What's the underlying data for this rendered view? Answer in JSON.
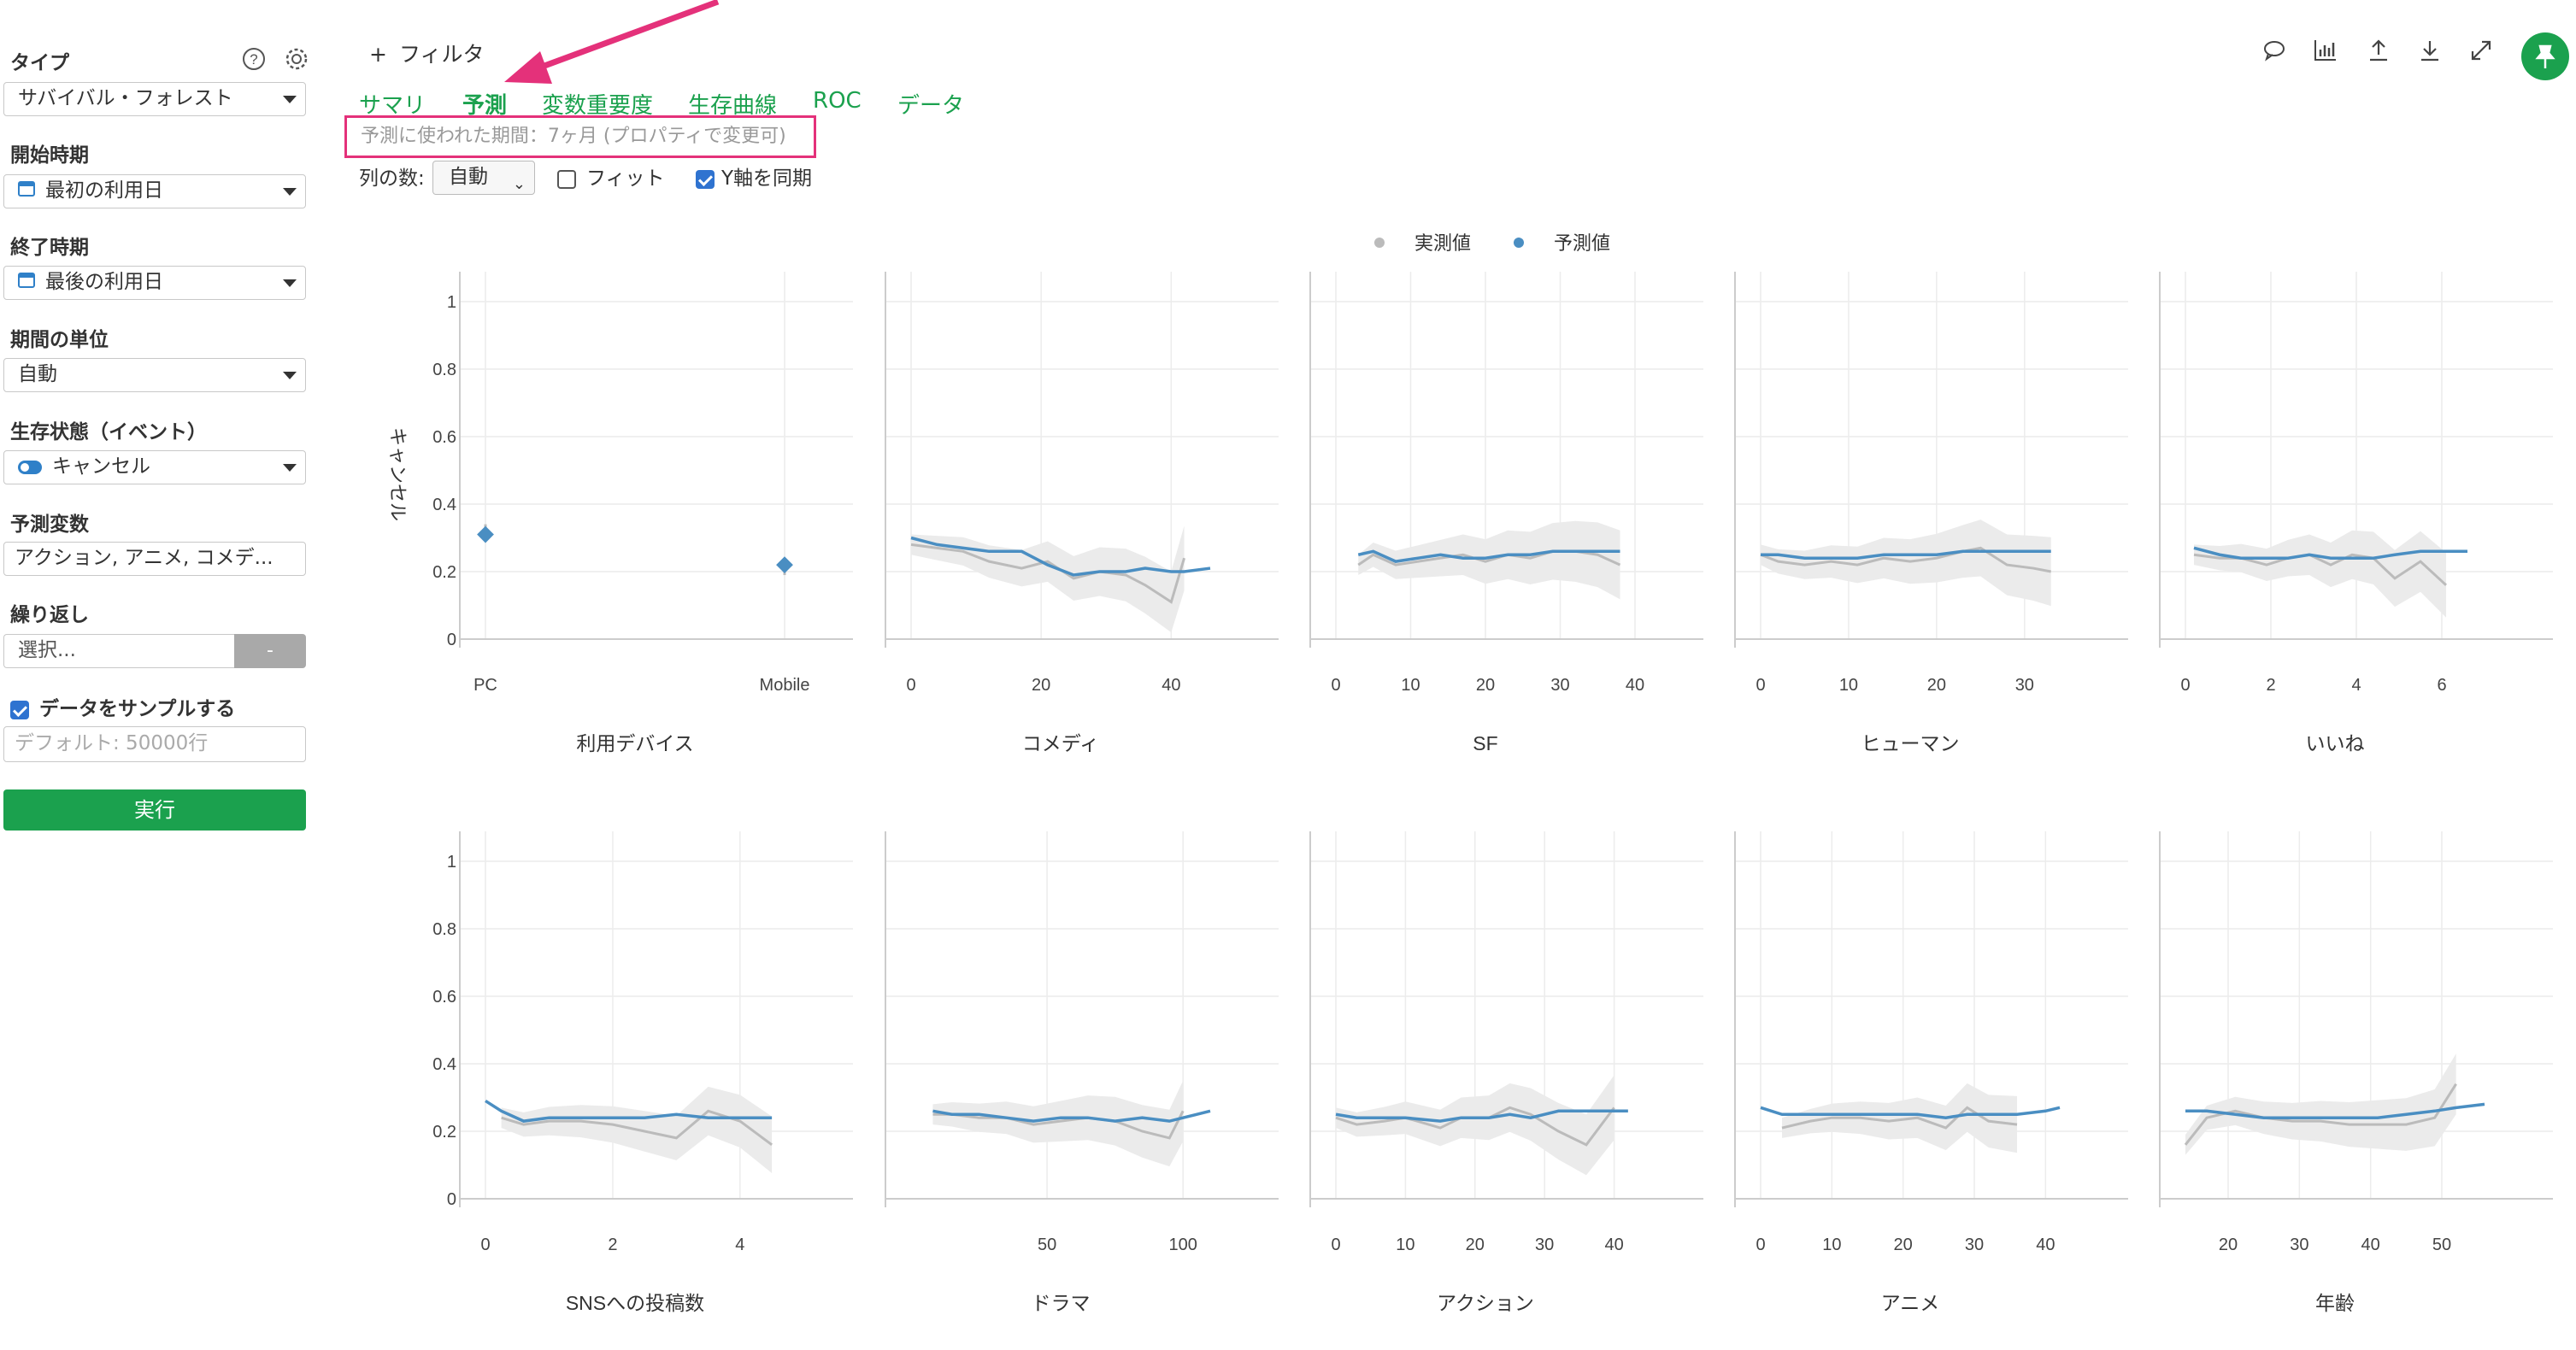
{
  "sidebar": {
    "type_label": "タイプ",
    "type_value": "サバイバル・フォレスト",
    "start_label": "開始時期",
    "start_value": "最初の利用日",
    "end_label": "終了時期",
    "end_value": "最後の利用日",
    "unit_label": "期間の単位",
    "unit_value": "自動",
    "event_label": "生存状態（イベント）",
    "event_value": "キャンセル",
    "predictors_label": "予測変数",
    "predictors_value": "アクション, アニメ, コメデ...",
    "repeat_label": "繰り返し",
    "repeat_placeholder": "選択...",
    "repeat_button": "-",
    "sample_label": "データをサンプルする",
    "sample_checked": true,
    "rows_placeholder": "デフォルト: 50000行",
    "run_button": "実行"
  },
  "header": {
    "filter_label": "フィルタ",
    "icons": [
      "comment-icon",
      "chart-icon",
      "upload-icon",
      "download-icon",
      "expand-icon",
      "pin-icon"
    ]
  },
  "tabs": [
    {
      "label": "サマリ",
      "active": false
    },
    {
      "label": "予測",
      "active": true
    },
    {
      "label": "変数重要度",
      "active": false
    },
    {
      "label": "生存曲線",
      "active": false
    },
    {
      "label": "ROC",
      "active": false
    },
    {
      "label": "データ",
      "active": false
    }
  ],
  "period_note": "予測に使われた期間：7ヶ月 (プロパティで変更可)",
  "options": {
    "columns_label": "列の数:",
    "columns_value": "自動",
    "fit_label": "フィット",
    "fit_checked": false,
    "sync_y_label": "Y軸を同期",
    "sync_y_checked": true
  },
  "colors": {
    "accent": "#1ba14e",
    "actual": "#bbbbbb",
    "predicted": "#4a8ec2",
    "highlight": "#e4317a"
  },
  "chart_data": {
    "type": "line",
    "legend": [
      "実測値",
      "予測値"
    ],
    "ylabel": "キャンセル",
    "yticks": [
      "1",
      "0.8",
      "0.6",
      "0.4",
      "0.2",
      "0"
    ],
    "ylim": [
      0,
      1
    ],
    "panels": [
      {
        "title": "利用デバイス",
        "kind": "categorical",
        "categories": [
          "PC",
          "Mobile"
        ],
        "actual": [
          0.32,
          0.21
        ],
        "predicted": [
          0.31,
          0.22
        ]
      },
      {
        "title": "コメディ",
        "xlim": [
          0,
          46
        ],
        "xticks": [
          "0",
          "20",
          "40"
        ],
        "x": [
          0,
          4,
          8,
          12,
          17,
          21,
          25,
          29,
          33,
          36,
          40,
          42,
          46
        ],
        "actual": [
          0.28,
          0.27,
          0.26,
          0.23,
          0.21,
          0.23,
          0.18,
          0.2,
          0.19,
          0.16,
          0.11,
          0.24,
          null
        ],
        "predicted": [
          0.3,
          0.28,
          0.27,
          0.26,
          0.26,
          0.22,
          0.19,
          0.2,
          0.2,
          0.21,
          0.2,
          0.2,
          0.21
        ]
      },
      {
        "title": "SF",
        "xlim": [
          0,
          40
        ],
        "xticks": [
          "0",
          "10",
          "20",
          "30",
          "40"
        ],
        "x": [
          3,
          5,
          8,
          11,
          14,
          17,
          20,
          23,
          26,
          29,
          32,
          35,
          38
        ],
        "actual": [
          0.22,
          0.25,
          0.22,
          0.23,
          0.24,
          0.25,
          0.23,
          0.25,
          0.24,
          0.26,
          0.26,
          0.25,
          0.22
        ],
        "predicted": [
          0.25,
          0.26,
          0.23,
          0.24,
          0.25,
          0.24,
          0.24,
          0.25,
          0.25,
          0.26,
          0.26,
          0.26,
          0.26
        ]
      },
      {
        "title": "ヒューマン",
        "xlim": [
          0,
          34
        ],
        "xticks": [
          "0",
          "10",
          "20",
          "30"
        ],
        "x": [
          0,
          2,
          5,
          8,
          11,
          14,
          17,
          20,
          23,
          25,
          28,
          31,
          33
        ],
        "actual": [
          0.25,
          0.23,
          0.22,
          0.23,
          0.22,
          0.24,
          0.23,
          0.24,
          0.26,
          0.27,
          0.22,
          0.21,
          0.2
        ],
        "predicted": [
          0.25,
          0.25,
          0.24,
          0.24,
          0.24,
          0.25,
          0.25,
          0.25,
          0.26,
          0.26,
          0.26,
          0.26,
          0.26
        ]
      },
      {
        "title": "いいね",
        "xlim": [
          0,
          7
        ],
        "xticks": [
          "0",
          "2",
          "4",
          "6"
        ],
        "x": [
          0.2,
          0.8,
          1.3,
          1.9,
          2.4,
          2.9,
          3.4,
          3.9,
          4.4,
          4.9,
          5.5,
          6.1,
          6.6
        ],
        "actual": [
          0.25,
          0.24,
          0.24,
          0.22,
          0.24,
          0.25,
          0.22,
          0.25,
          0.24,
          0.18,
          0.23,
          0.16,
          null
        ],
        "predicted": [
          0.27,
          0.25,
          0.24,
          0.24,
          0.24,
          0.25,
          0.24,
          0.24,
          0.24,
          0.25,
          0.26,
          0.26,
          0.26
        ]
      },
      {
        "title": "SNSへの投稿数",
        "xlim": [
          0,
          4.7
        ],
        "xticks": [
          "0",
          "2",
          "4"
        ],
        "x": [
          0,
          0.25,
          0.6,
          1.0,
          1.5,
          2.0,
          2.5,
          3.0,
          3.5,
          4.0,
          4.5
        ],
        "actual": [
          null,
          0.24,
          0.22,
          0.23,
          0.23,
          0.22,
          0.2,
          0.18,
          0.26,
          0.23,
          0.16
        ],
        "predicted": [
          0.29,
          0.26,
          0.23,
          0.24,
          0.24,
          0.24,
          0.24,
          0.25,
          0.24,
          0.24,
          0.24
        ]
      },
      {
        "title": "ドラマ",
        "xlim": [
          0,
          110
        ],
        "xticks": [
          "50",
          "100"
        ],
        "x": [
          8,
          15,
          25,
          35,
          45,
          55,
          65,
          75,
          85,
          95,
          100,
          110
        ],
        "actual": [
          0.25,
          0.25,
          0.24,
          0.24,
          0.22,
          0.23,
          0.24,
          0.23,
          0.2,
          0.18,
          0.26,
          null
        ],
        "predicted": [
          0.26,
          0.25,
          0.25,
          0.24,
          0.23,
          0.24,
          0.24,
          0.23,
          0.24,
          0.23,
          0.24,
          0.26
        ]
      },
      {
        "title": "アクション",
        "xlim": [
          0,
          43
        ],
        "xticks": [
          "0",
          "10",
          "20",
          "30",
          "40"
        ],
        "x": [
          0,
          3,
          7,
          10,
          15,
          18,
          22,
          25,
          28,
          32,
          36,
          40,
          42
        ],
        "actual": [
          0.24,
          0.22,
          0.23,
          0.24,
          0.21,
          0.24,
          0.24,
          0.27,
          0.25,
          0.2,
          0.16,
          0.27,
          null
        ],
        "predicted": [
          0.25,
          0.24,
          0.24,
          0.24,
          0.23,
          0.24,
          0.24,
          0.25,
          0.24,
          0.26,
          0.26,
          0.26,
          0.26
        ]
      },
      {
        "title": "アニメ",
        "xlim": [
          0,
          42
        ],
        "xticks": [
          "0",
          "10",
          "20",
          "30",
          "40"
        ],
        "x": [
          0,
          3,
          7,
          10,
          14,
          18,
          22,
          26,
          29,
          32,
          36,
          40,
          42
        ],
        "actual": [
          null,
          0.21,
          0.23,
          0.24,
          0.24,
          0.23,
          0.24,
          0.21,
          0.27,
          0.23,
          0.22,
          null,
          null
        ],
        "predicted": [
          0.27,
          0.25,
          0.25,
          0.25,
          0.25,
          0.25,
          0.25,
          0.24,
          0.25,
          0.25,
          0.25,
          0.26,
          0.27
        ]
      },
      {
        "title": "年齢",
        "xlim": [
          14,
          56
        ],
        "xticks": [
          "20",
          "30",
          "40",
          "50"
        ],
        "x": [
          14,
          17,
          21,
          25,
          29,
          33,
          37,
          41,
          45,
          49,
          52,
          56
        ],
        "actual": [
          0.16,
          0.24,
          0.26,
          0.24,
          0.23,
          0.23,
          0.22,
          0.22,
          0.22,
          0.24,
          0.34,
          null
        ],
        "predicted": [
          0.26,
          0.26,
          0.25,
          0.24,
          0.24,
          0.24,
          0.24,
          0.24,
          0.25,
          0.26,
          0.27,
          0.28
        ]
      }
    ]
  }
}
